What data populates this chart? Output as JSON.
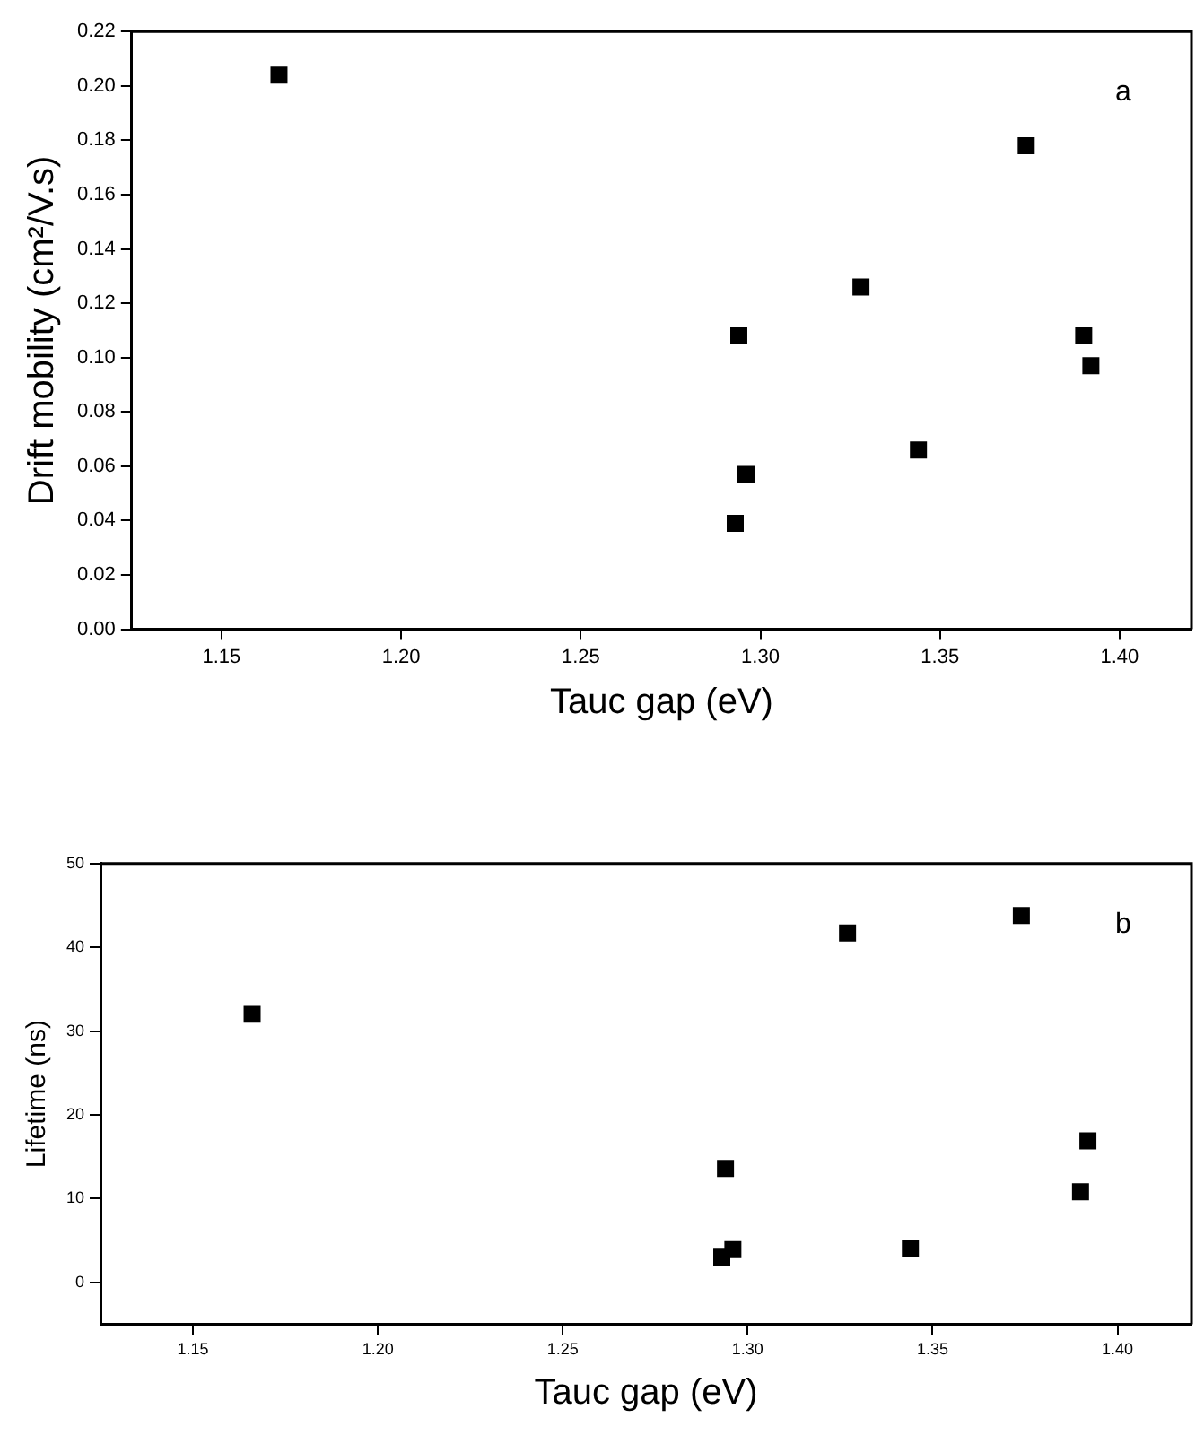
{
  "chart_data": [
    {
      "type": "scatter",
      "xlabel": "Tauc gap (eV)",
      "ylabel": "Drift mobility (cm²/V.s)",
      "annotations": [
        "a"
      ],
      "marker": "square",
      "grid": false,
      "legend": false,
      "x": [
        1.166,
        1.294,
        1.293,
        1.296,
        1.328,
        1.344,
        1.374,
        1.39,
        1.392
      ],
      "series": [
        {
          "color": "#000000",
          "values": [
            0.204,
            0.108,
            0.039,
            0.057,
            0.126,
            0.066,
            0.178,
            0.108,
            0.097
          ]
        }
      ],
      "xlim": [
        1.125,
        1.42
      ],
      "xticks": [
        1.15,
        {
          "value": 1.2,
          "label": "1.20"
        },
        1.25,
        {
          "value": 1.3,
          "label": "1.30"
        },
        1.35,
        {
          "value": 1.4,
          "label": "1.40"
        }
      ],
      "ylim": [
        0,
        0.22
      ],
      "yticks": [
        {
          "value": 0,
          "label": "0.00"
        },
        0.02,
        0.04,
        0.06,
        0.08,
        {
          "value": 0.1,
          "label": "0.10"
        },
        0.12,
        0.14,
        0.16,
        0.18,
        {
          "value": 0.2,
          "label": "0.20"
        },
        0.22
      ]
    },
    {
      "type": "scatter",
      "xlabel": "Tauc gap (eV)",
      "ylabel": "Lifetime (ns)",
      "annotations": [
        "b"
      ],
      "marker": "square",
      "grid": false,
      "legend": false,
      "x": [
        1.166,
        1.327,
        1.374,
        1.294,
        1.392,
        1.39,
        1.293,
        1.296,
        1.344
      ],
      "series": [
        {
          "color": "#000000",
          "values": [
            32.0,
            41.7,
            43.8,
            13.6,
            16.9,
            10.8,
            3.0,
            3.9,
            4.0
          ]
        }
      ],
      "xlim": [
        1.125,
        1.42
      ],
      "xticks": [
        1.15,
        {
          "value": 1.2,
          "label": "1.20"
        },
        1.25,
        {
          "value": 1.3,
          "label": "1.30"
        },
        1.35,
        {
          "value": 1.4,
          "label": "1.40"
        }
      ],
      "ylim": [
        -5,
        50
      ],
      "yticks": [
        0,
        10,
        20,
        30,
        40,
        50
      ]
    }
  ]
}
